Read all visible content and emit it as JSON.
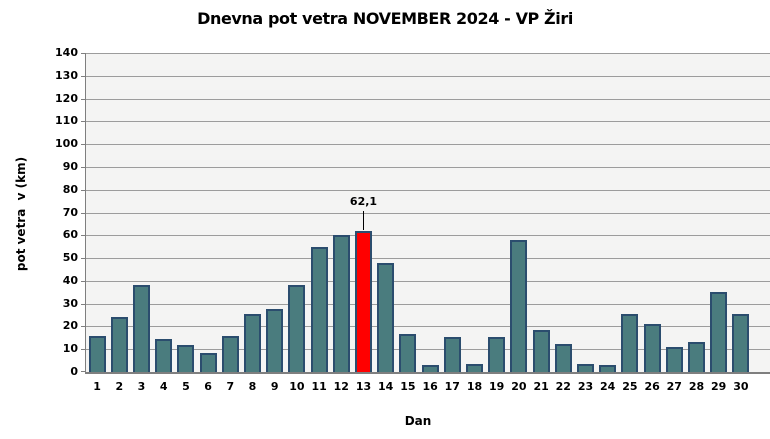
{
  "chart_data": {
    "type": "bar",
    "title": "Dnevna pot vetra NOVEMBER 2024 - VP Žiri",
    "xlabel": "Dan",
    "ylabel": "pot vetra  v (km)",
    "ylim": [
      0,
      140
    ],
    "yticks": [
      0,
      10,
      20,
      30,
      40,
      50,
      60,
      70,
      80,
      90,
      100,
      110,
      120,
      130,
      140
    ],
    "grid": true,
    "legend": false,
    "categories": [
      "1",
      "2",
      "3",
      "4",
      "5",
      "6",
      "7",
      "8",
      "9",
      "10",
      "11",
      "12",
      "13",
      "14",
      "15",
      "16",
      "17",
      "18",
      "19",
      "20",
      "21",
      "22",
      "23",
      "24",
      "25",
      "26",
      "27",
      "28",
      "29",
      "30"
    ],
    "values": [
      16,
      24,
      38,
      14.5,
      12,
      8.5,
      16,
      25.5,
      27.5,
      38,
      55,
      60,
      62.1,
      48,
      16.5,
      3,
      15.5,
      3.5,
      15.5,
      58,
      18.5,
      12.5,
      3.5,
      3,
      25.5,
      21,
      11,
      13,
      35,
      25.5
    ],
    "highlight_index": 12,
    "annotation": {
      "index": 12,
      "text": "62,1"
    },
    "colors": {
      "bar_fill": "#4A7C7E",
      "bar_border": "#2B4D6E",
      "highlight_fill": "#FF0000",
      "plot_bg": "#F4F4F3",
      "gridline": "#9C9C9C",
      "axis_line": "#7F7F7F",
      "text": "#000000"
    }
  }
}
